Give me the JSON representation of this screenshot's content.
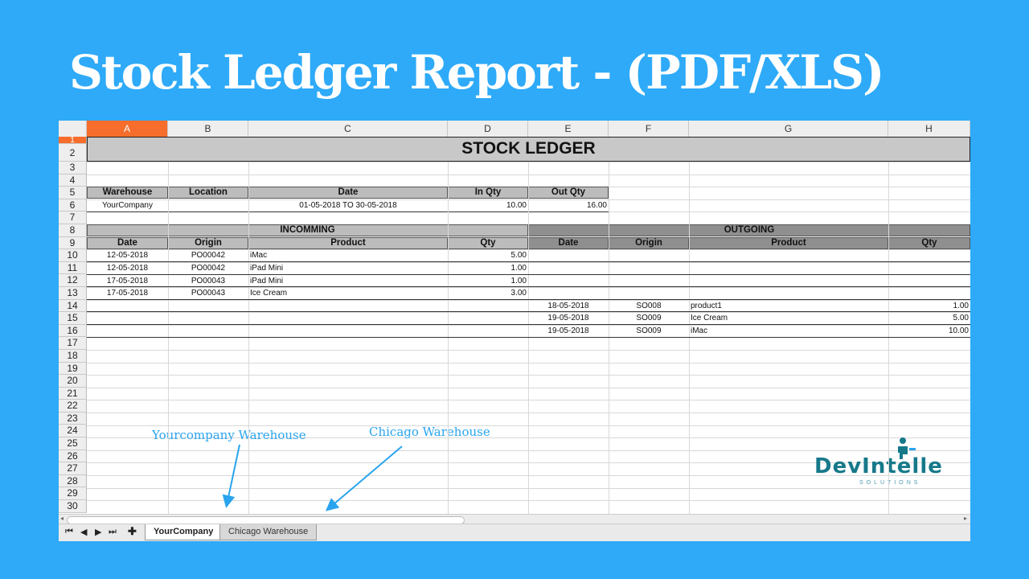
{
  "headline": "Stock Ledger Report -  (PDF/XLS)",
  "columns": [
    "A",
    "B",
    "C",
    "D",
    "E",
    "F",
    "G",
    "H"
  ],
  "rows": [
    "1",
    "2",
    "3",
    "4",
    "5",
    "6",
    "7",
    "8",
    "9",
    "10",
    "11",
    "12",
    "13",
    "14",
    "15",
    "16",
    "17",
    "18",
    "19",
    "20",
    "21",
    "22",
    "23",
    "24",
    "25",
    "26",
    "27",
    "28",
    "29",
    "30"
  ],
  "report": {
    "title": "STOCK LEDGER",
    "summary_headers": [
      "Warehouse",
      "Location",
      "Date",
      "In Qty",
      "Out Qty"
    ],
    "summary_values": {
      "warehouse": "YourCompany",
      "location": "",
      "date": "01-05-2018 TO 30-05-2018",
      "in_qty": "10.00",
      "out_qty": "16.00"
    },
    "incoming_label": "INCOMMING",
    "outgoing_label": "OUTGOING",
    "incoming_headers": [
      "Date",
      "Origin",
      "Product",
      "Qty"
    ],
    "outgoing_headers": [
      "Date",
      "Origin",
      "Product",
      "Qty"
    ],
    "incoming": [
      {
        "date": "12-05-2018",
        "origin": "PO00042",
        "product": "iMac",
        "qty": "5.00"
      },
      {
        "date": "12-05-2018",
        "origin": "PO00042",
        "product": "iPad Mini",
        "qty": "1.00"
      },
      {
        "date": "17-05-2018",
        "origin": "PO00043",
        "product": "iPad Mini",
        "qty": "1.00"
      },
      {
        "date": "17-05-2018",
        "origin": "PO00043",
        "product": "Ice Cream",
        "qty": "3.00"
      }
    ],
    "outgoing": [
      {
        "date": "18-05-2018",
        "origin": "SO008",
        "product": "product1",
        "qty": "1.00"
      },
      {
        "date": "19-05-2018",
        "origin": "SO009",
        "product": "Ice Cream",
        "qty": "5.00"
      },
      {
        "date": "19-05-2018",
        "origin": "SO009",
        "product": "iMac",
        "qty": "10.00"
      }
    ]
  },
  "annotations": {
    "yourcompany": "Yourcompany Warehouse",
    "chicago": "Chicago Warehouse"
  },
  "tabs": [
    "YourCompany",
    "Chicago Warehouse"
  ],
  "logo": {
    "name": "DevIntelle",
    "sub": "SOLUTIONS"
  },
  "colors": {
    "background": "#2eaaf8",
    "selection": "#f76d2b",
    "logo": "#16798a"
  }
}
